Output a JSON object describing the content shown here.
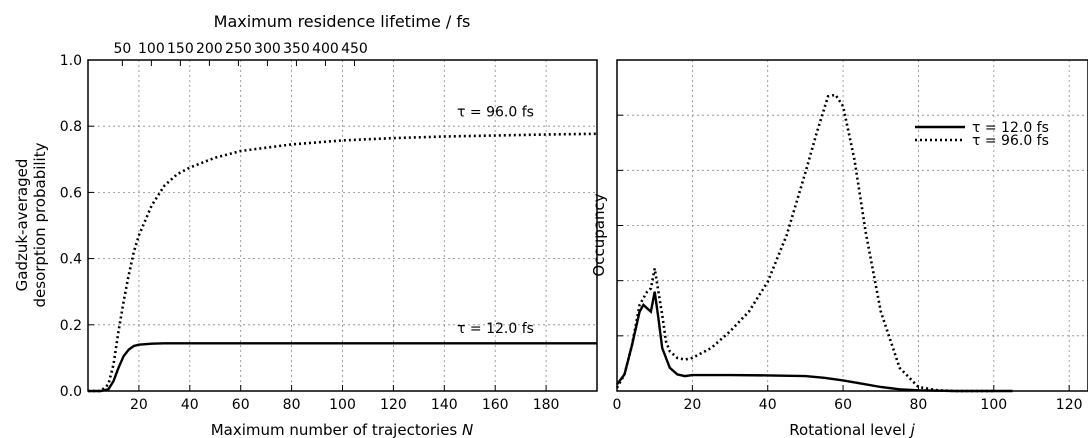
{
  "chart_data": [
    {
      "type": "line",
      "title": "Maximum residence lifetime / fs",
      "xlabel": "Maximum number of trajectories N",
      "ylabel": [
        "Gadzuk-averaged",
        "desorption probability"
      ],
      "xlim": [
        0,
        200
      ],
      "ylim": [
        0.0,
        1.0
      ],
      "xticks": [
        20,
        40,
        60,
        80,
        100,
        120,
        140,
        160,
        180
      ],
      "yticks": [
        "0.0",
        "0.2",
        "0.4",
        "0.6",
        "0.8",
        "1.0"
      ],
      "top_xticks": [
        "50",
        "100",
        "150",
        "200",
        "250",
        "300",
        "350",
        "400",
        "450"
      ],
      "top_xtick_positions": [
        13.5,
        24.9,
        36.3,
        47.7,
        59.1,
        70.5,
        81.9,
        93.3,
        104.7
      ],
      "grid": true,
      "series": [
        {
          "name": "τ = 96.0 fs",
          "style": "dotted",
          "x": [
            0,
            5,
            8,
            10,
            12,
            14,
            16,
            18,
            20,
            25,
            30,
            35,
            40,
            50,
            60,
            70,
            80,
            100,
            120,
            140,
            160,
            180,
            200
          ],
          "y": [
            0.0,
            0.0,
            0.02,
            0.08,
            0.18,
            0.27,
            0.35,
            0.42,
            0.47,
            0.56,
            0.62,
            0.655,
            0.675,
            0.705,
            0.725,
            0.735,
            0.745,
            0.757,
            0.764,
            0.769,
            0.772,
            0.775,
            0.777
          ]
        },
        {
          "name": "τ = 12.0 fs",
          "style": "solid",
          "x": [
            0,
            5,
            8,
            10,
            12,
            14,
            16,
            18,
            20,
            25,
            30,
            40,
            60,
            100,
            150,
            200
          ],
          "y": [
            0.0,
            0.0,
            0.005,
            0.03,
            0.07,
            0.105,
            0.125,
            0.136,
            0.14,
            0.143,
            0.144,
            0.144,
            0.144,
            0.144,
            0.144,
            0.144
          ]
        }
      ],
      "annotations": [
        {
          "text": "τ = 96.0 fs",
          "x": 145,
          "y": 0.83
        },
        {
          "text": "τ = 12.0 fs",
          "x": 145,
          "y": 0.175
        }
      ]
    },
    {
      "type": "line",
      "xlabel": "Rotational level j",
      "ylabel": "Occupancy",
      "xlim": [
        0,
        125
      ],
      "ylim": [
        0,
        1
      ],
      "xticks": [
        0,
        20,
        40,
        60,
        80,
        100,
        120
      ],
      "grid": true,
      "legend_position": "top-right",
      "series": [
        {
          "name": "τ = 12.0 fs",
          "style": "solid",
          "x": [
            0,
            2,
            4,
            6,
            7,
            8,
            9,
            10,
            11,
            12,
            14,
            16,
            18,
            20,
            30,
            40,
            50,
            55,
            60,
            65,
            70,
            75,
            80,
            90,
            100,
            105
          ],
          "y": [
            0.02,
            0.05,
            0.14,
            0.24,
            0.26,
            0.25,
            0.24,
            0.3,
            0.22,
            0.13,
            0.07,
            0.05,
            0.045,
            0.048,
            0.048,
            0.047,
            0.045,
            0.04,
            0.032,
            0.022,
            0.012,
            0.005,
            0.002,
            0.0,
            0.0,
            0.0
          ]
        },
        {
          "name": "τ = 96.0 fs",
          "style": "dotted",
          "x": [
            0,
            2,
            4,
            6,
            8,
            9,
            10,
            11,
            12,
            13,
            14,
            16,
            18,
            20,
            25,
            30,
            35,
            40,
            45,
            50,
            53,
            56,
            58,
            60,
            63,
            66,
            70,
            75,
            80,
            85,
            90,
            95,
            100
          ],
          "y": [
            0.01,
            0.05,
            0.14,
            0.26,
            0.3,
            0.31,
            0.37,
            0.3,
            0.23,
            0.15,
            0.12,
            0.1,
            0.095,
            0.1,
            0.13,
            0.18,
            0.24,
            0.33,
            0.47,
            0.66,
            0.78,
            0.89,
            0.895,
            0.86,
            0.7,
            0.48,
            0.24,
            0.07,
            0.012,
            0.002,
            0.0,
            0.0,
            0.0
          ]
        }
      ]
    }
  ],
  "colors": {
    "line": "#000000",
    "grid": "#888888",
    "background": "#ffffff"
  }
}
